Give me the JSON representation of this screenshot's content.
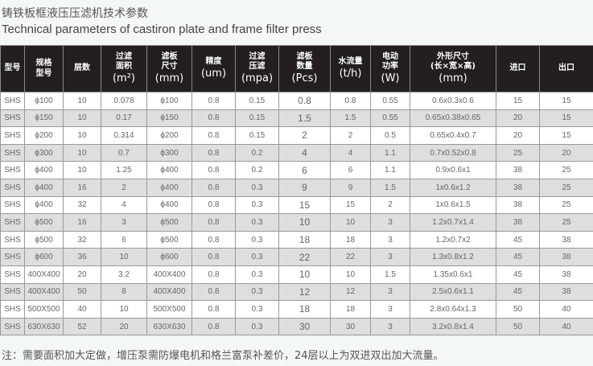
{
  "title_cn": "铸铁板框液压压滤机技术参数",
  "title_en": "Technical parameters of castiron plate and frame  filter press",
  "headers": [
    {
      "l": "型号",
      "u": ""
    },
    {
      "l": "规格\n型号",
      "u": ""
    },
    {
      "l": "层数",
      "u": ""
    },
    {
      "l": "过滤\n面积",
      "u": "(m²)"
    },
    {
      "l": "滤板\n尺寸",
      "u": "(mm)"
    },
    {
      "l": "精度",
      "u": "(um)"
    },
    {
      "l": "过滤\n压滤",
      "u": "(mpa)"
    },
    {
      "l": "滤板\n数量",
      "u": "(Pcs)"
    },
    {
      "l": "水流量",
      "u": "(t/h)"
    },
    {
      "l": "电动\n功率",
      "u": "(W)"
    },
    {
      "l": "外形尺寸\n(长×宽×高)",
      "u": "(mm)"
    },
    {
      "l": "进口",
      "u": ""
    },
    {
      "l": "出口",
      "u": ""
    }
  ],
  "rows": [
    [
      "SHS",
      "ϕ100",
      "10",
      "0.078",
      "ϕ100",
      "0.8",
      "0.15",
      "0.8",
      "0.8",
      "0.55",
      "0.6x0.3x0.6",
      "15",
      "15"
    ],
    [
      "SHS",
      "ϕ150",
      "10",
      "0.17",
      "ϕ150",
      "0.8",
      "0.15",
      "1.5",
      "1.5",
      "0.55",
      "0.65x0.38x0.65",
      "20",
      "15"
    ],
    [
      "SHS",
      "ϕ200",
      "10",
      "0.314",
      "ϕ200",
      "0.8",
      "0.15",
      "2",
      "2",
      "0.5",
      "0.65x0.4x0.7",
      "20",
      "15"
    ],
    [
      "SHS",
      "ϕ300",
      "10",
      "0.7",
      "ϕ300",
      "0.8",
      "0.2",
      "4",
      "4",
      "1.1",
      "0.7x0.52x0.8",
      "25",
      "20"
    ],
    [
      "SHS",
      "ϕ400",
      "10",
      "1.25",
      "ϕ400",
      "0.8",
      "0.2",
      "6",
      "6",
      "1.1",
      "0.9x0.6x1",
      "38",
      "25"
    ],
    [
      "SHS",
      "ϕ400",
      "16",
      "2",
      "ϕ400",
      "0.8",
      "0.3",
      "9",
      "9",
      "1.5",
      "1x0.6x1.2",
      "38",
      "25"
    ],
    [
      "SHS",
      "ϕ400",
      "32",
      "4",
      "ϕ400",
      "0.8",
      "0.3",
      "15",
      "15",
      "2",
      "1x0.6x1.5",
      "38",
      "25"
    ],
    [
      "SHS",
      "ϕ500",
      "16",
      "3",
      "ϕ500",
      "0.8",
      "0.3",
      "10",
      "10",
      "3",
      "1.2x0.7x1.4",
      "38",
      "25"
    ],
    [
      "SHS",
      "ϕ500",
      "32",
      "6",
      "ϕ500",
      "0.8",
      "0.3",
      "18",
      "18",
      "3",
      "1.2x0.7x2",
      "45",
      "38"
    ],
    [
      "SHS",
      "ϕ600",
      "36",
      "10",
      "ϕ600",
      "0.8",
      "0.3",
      "22",
      "22",
      "3",
      "1.3x0.8x1.2",
      "45",
      "38"
    ],
    [
      "SHS",
      "400X400",
      "20",
      "3.2",
      "400X400",
      "0.8",
      "0.3",
      "10",
      "10",
      "1.5",
      "1.35x0.6x1",
      "45",
      "38"
    ],
    [
      "SHS",
      "400X400",
      "50",
      "8",
      "400X400",
      "0.8",
      "0.3",
      "12",
      "12",
      "3",
      "2.5x0.6x1.1",
      "45",
      "38"
    ],
    [
      "SHS",
      "500X500",
      "40",
      "10",
      "500X500",
      "0.8",
      "0.3",
      "18",
      "18",
      "3",
      "2.8x0.64x1.3",
      "50",
      "40"
    ],
    [
      "SHS",
      "630X630",
      "52",
      "20",
      "630X630",
      "0.8",
      "0.3",
      "30",
      "30",
      "3",
      "3.2x0.8x1.4",
      "50",
      "40"
    ]
  ],
  "note": "注：需要面积加大定做，增压泵需防爆电机和格兰富泵补差价，24层以上为双进双出加大流量。"
}
